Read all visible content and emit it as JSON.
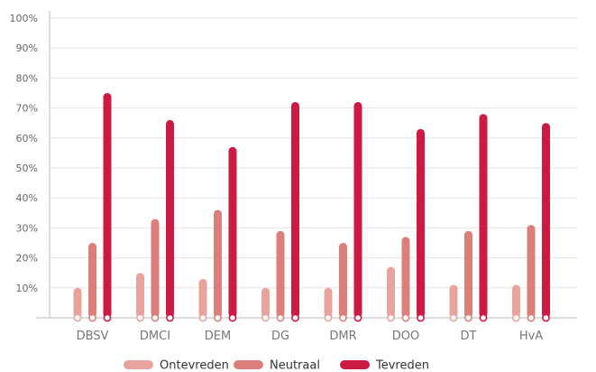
{
  "chart_data": {
    "type": "bar",
    "title": "",
    "xlabel": "",
    "ylabel": "",
    "ylim": [
      0,
      100
    ],
    "yticks": [
      "10%",
      "20%",
      "30%",
      "40%",
      "50%",
      "60%",
      "70%",
      "80%",
      "90%",
      "100%"
    ],
    "grid": true,
    "legend_position": "bottom",
    "categories": [
      "DBSV",
      "DMCI",
      "DEM",
      "DG",
      "DMR",
      "DOO",
      "DT",
      "HvA"
    ],
    "series": [
      {
        "name": "Ontevreden",
        "color": "#e8a49c",
        "values": [
          10,
          15,
          13,
          10,
          10,
          17,
          11,
          11
        ]
      },
      {
        "name": "Neutraal",
        "color": "#dc7f7a",
        "values": [
          25,
          33,
          36,
          29,
          25,
          27,
          29,
          31
        ]
      },
      {
        "name": "Tevreden",
        "color": "#cc1a43",
        "values": [
          75,
          66,
          57,
          72,
          72,
          63,
          68,
          65
        ]
      }
    ]
  }
}
